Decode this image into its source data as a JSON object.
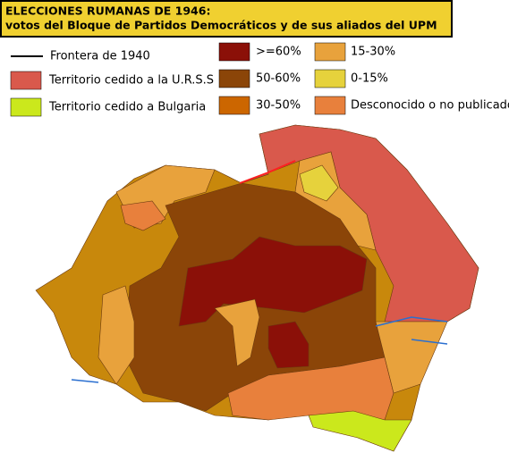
{
  "title": {
    "line1": "ELECCIONES RUMANAS DE 1946:",
    "line2": "votos del Bloque de Partidos Democráticos y de sus aliados del UPM"
  },
  "legend": [
    {
      "label": "Frontera de 1940",
      "color": "#000000",
      "kind": "line"
    },
    {
      "label": "Territorio cedido a la U.R.S.S",
      "color": "#d9594c"
    },
    {
      "label": "Territorio cedido a Bulgaria",
      "color": "#cbe81c"
    },
    {
      "label": ">=60%",
      "color": "#8b1008"
    },
    {
      "label": "50-60%",
      "color": "#8b4508"
    },
    {
      "label": "30-50%",
      "color": "#cc6600"
    },
    {
      "label": "15-30%",
      "color": "#e8a23c"
    },
    {
      "label": "0-15%",
      "color": "#e6d23c"
    },
    {
      "label": "Desconocido o no publicado",
      "color": "#e8803c"
    }
  ]
}
